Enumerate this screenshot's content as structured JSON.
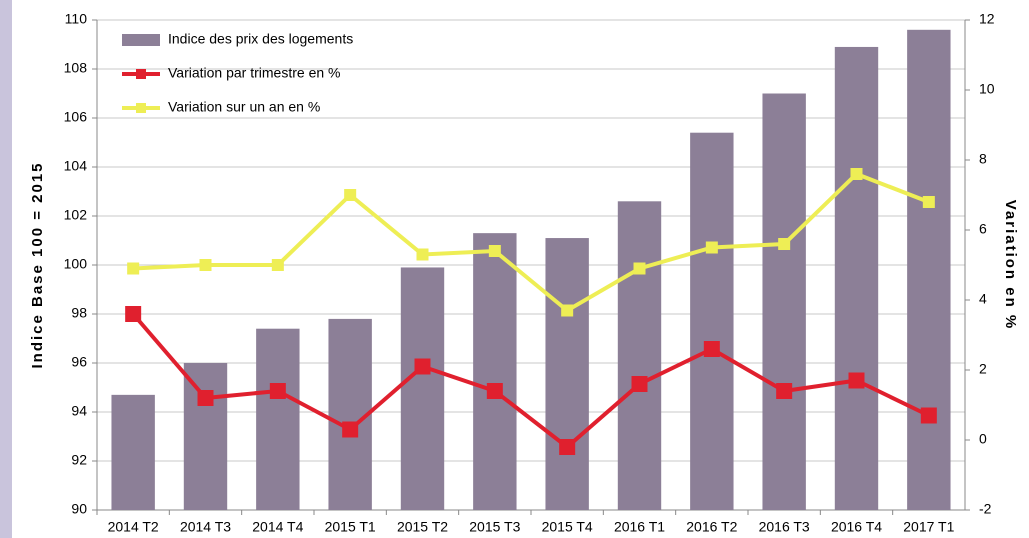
{
  "chart_data": {
    "type": "bar_line",
    "categories": [
      "2014 T2",
      "2014 T3",
      "2014 T4",
      "2015 T1",
      "2015 T2",
      "2015 T3",
      "2015 T4",
      "2016 T1",
      "2016 T2",
      "2016 T3",
      "2016 T4",
      "2017 T1"
    ],
    "y_label": "Indice Base 100 = 2015",
    "y2_label": "Variation en %",
    "series": [
      {
        "name": "Indice des prix des logements",
        "type": "bar",
        "color": "#8c7f97",
        "values": [
          94.7,
          96.0,
          97.4,
          97.8,
          99.9,
          101.3,
          101.1,
          102.6,
          105.4,
          107.0,
          108.9,
          109.6
        ]
      },
      {
        "name": "Variation par trimestre en %",
        "type": "line",
        "axis": "y2",
        "color": "#e0202e",
        "values": [
          3.6,
          1.2,
          1.4,
          0.3,
          2.1,
          1.4,
          -0.2,
          1.6,
          2.6,
          1.4,
          1.7,
          0.7
        ]
      },
      {
        "name": "Variation sur un an en %",
        "type": "line",
        "axis": "y2",
        "color": "#eeee55",
        "values": [
          4.9,
          5.0,
          5.0,
          7.0,
          5.3,
          5.4,
          3.7,
          4.9,
          5.5,
          5.6,
          7.6,
          6.8
        ]
      }
    ],
    "ylim": [
      90,
      110
    ],
    "yticks": [
      90,
      92,
      94,
      96,
      98,
      100,
      102,
      104,
      106,
      108,
      110
    ],
    "y2lim": [
      -2,
      12
    ],
    "y2ticks": [
      -2,
      0,
      2,
      4,
      6,
      8,
      10,
      12
    ],
    "grid": true,
    "legend": "upper left"
  }
}
